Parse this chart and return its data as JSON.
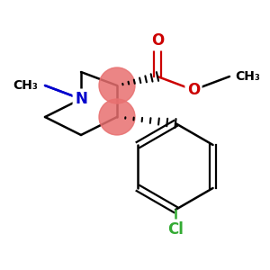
{
  "bg_color": "#ffffff",
  "atom_colors": {
    "N": "#0000cc",
    "O": "#cc0000",
    "Cl": "#33aa33"
  },
  "stereocenter_color": "#e87070",
  "bond_lw": 1.8,
  "font_size": 12
}
